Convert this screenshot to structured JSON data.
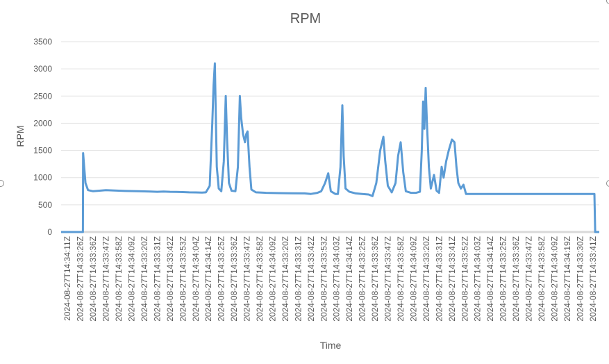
{
  "chart_data": {
    "type": "line",
    "title": "RPM",
    "xlabel": "Time",
    "ylabel": "RPM",
    "ylim": [
      0,
      3500
    ],
    "yticks": [
      0,
      500,
      1000,
      1500,
      2000,
      2500,
      3000,
      3500
    ],
    "grid": true,
    "legend": "none",
    "line_color": "#5b9bd5",
    "categories": [
      "2024-08-27T14:34:11Z",
      "2024-08-27T14:33:26Z",
      "2024-08-27T14:33:36Z",
      "2024-08-27T14:33:47Z",
      "2024-08-27T14:33:58Z",
      "2024-08-27T14:34:09Z",
      "2024-08-27T14:33:20Z",
      "2024-08-27T14:33:31Z",
      "2024-08-27T14:33:42Z",
      "2024-08-27T14:33:53Z",
      "2024-08-27T14:34:04Z",
      "2024-08-27T14:34:14Z",
      "2024-08-27T14:33:25Z",
      "2024-08-27T14:33:36Z",
      "2024-08-27T14:33:47Z",
      "2024-08-27T14:33:58Z",
      "2024-08-27T14:34:09Z",
      "2024-08-27T14:33:20Z",
      "2024-08-27T14:33:31Z",
      "2024-08-27T14:33:42Z",
      "2024-08-27T14:33:53Z",
      "2024-08-27T14:34:03Z",
      "2024-08-27T14:34:14Z",
      "2024-08-27T14:33:25Z",
      "2024-08-27T14:33:36Z",
      "2024-08-27T14:33:47Z",
      "2024-08-27T14:33:58Z",
      "2024-08-27T14:34:09Z",
      "2024-08-27T14:33:20Z",
      "2024-08-27T14:33:31Z",
      "2024-08-27T14:33:41Z",
      "2024-08-27T14:33:52Z",
      "2024-08-27T14:34:03Z",
      "2024-08-27T14:34:14Z",
      "2024-08-27T14:33:25Z",
      "2024-08-27T14:33:36Z",
      "2024-08-27T14:33:47Z",
      "2024-08-27T14:33:58Z",
      "2024-08-27T14:34:09Z",
      "2024-08-27T14:34:19Z",
      "2024-08-27T14:33:30Z",
      "2024-08-27T14:33:41Z"
    ],
    "series": [
      {
        "values": [
          [
            0,
            0
          ],
          [
            1.7,
            0
          ],
          [
            1.72,
            1450
          ],
          [
            1.8,
            1200
          ],
          [
            1.9,
            900
          ],
          [
            2.1,
            770
          ],
          [
            2.5,
            750
          ],
          [
            3,
            760
          ],
          [
            3.5,
            770
          ],
          [
            4,
            765
          ],
          [
            5,
            755
          ],
          [
            6,
            750
          ],
          [
            7,
            745
          ],
          [
            7.5,
            740
          ],
          [
            8,
            745
          ],
          [
            8.5,
            740
          ],
          [
            9,
            738
          ],
          [
            9.5,
            735
          ],
          [
            10,
            730
          ],
          [
            10.5,
            728
          ],
          [
            11,
            725
          ],
          [
            11.3,
            730
          ],
          [
            11.6,
            850
          ],
          [
            11.8,
            2000
          ],
          [
            11.9,
            2700
          ],
          [
            12.0,
            3100
          ],
          [
            12.05,
            2400
          ],
          [
            12.15,
            1200
          ],
          [
            12.3,
            800
          ],
          [
            12.5,
            750
          ],
          [
            12.7,
            1300
          ],
          [
            12.85,
            2500
          ],
          [
            12.95,
            1700
          ],
          [
            13.1,
            900
          ],
          [
            13.3,
            760
          ],
          [
            13.6,
            750
          ],
          [
            13.8,
            1200
          ],
          [
            13.95,
            2500
          ],
          [
            14.05,
            2100
          ],
          [
            14.2,
            1800
          ],
          [
            14.35,
            1650
          ],
          [
            14.45,
            1800
          ],
          [
            14.55,
            1850
          ],
          [
            14.7,
            1200
          ],
          [
            14.85,
            780
          ],
          [
            15.2,
            730
          ],
          [
            16,
            720
          ],
          [
            17,
            715
          ],
          [
            18,
            712
          ],
          [
            19,
            710
          ],
          [
            19.5,
            700
          ],
          [
            20,
            720
          ],
          [
            20.3,
            750
          ],
          [
            20.6,
            900
          ],
          [
            20.85,
            1080
          ],
          [
            21.05,
            750
          ],
          [
            21.4,
            700
          ],
          [
            21.6,
            700
          ],
          [
            21.8,
            1200
          ],
          [
            21.95,
            2330
          ],
          [
            22.05,
            1400
          ],
          [
            22.2,
            800
          ],
          [
            22.5,
            740
          ],
          [
            23,
            710
          ],
          [
            23.5,
            700
          ],
          [
            24,
            690
          ],
          [
            24.3,
            660
          ],
          [
            24.6,
            900
          ],
          [
            24.9,
            1500
          ],
          [
            25.15,
            1750
          ],
          [
            25.3,
            1300
          ],
          [
            25.5,
            850
          ],
          [
            25.8,
            730
          ],
          [
            26.1,
            900
          ],
          [
            26.3,
            1400
          ],
          [
            26.5,
            1650
          ],
          [
            26.7,
            1100
          ],
          [
            26.9,
            750
          ],
          [
            27.3,
            720
          ],
          [
            27.7,
            720
          ],
          [
            28,
            740
          ],
          [
            28.15,
            1500
          ],
          [
            28.25,
            2400
          ],
          [
            28.35,
            1900
          ],
          [
            28.45,
            2650
          ],
          [
            28.55,
            2000
          ],
          [
            28.7,
            1200
          ],
          [
            28.85,
            800
          ],
          [
            29.1,
            1050
          ],
          [
            29.3,
            760
          ],
          [
            29.5,
            720
          ],
          [
            29.7,
            1200
          ],
          [
            29.85,
            1000
          ],
          [
            30.05,
            1300
          ],
          [
            30.25,
            1500
          ],
          [
            30.5,
            1700
          ],
          [
            30.7,
            1650
          ],
          [
            30.85,
            1200
          ],
          [
            31,
            900
          ],
          [
            31.2,
            800
          ],
          [
            31.4,
            870
          ],
          [
            31.6,
            700
          ],
          [
            32,
            700
          ],
          [
            33,
            700
          ],
          [
            34,
            700
          ],
          [
            35,
            700
          ],
          [
            36,
            700
          ],
          [
            37,
            700
          ],
          [
            38,
            700
          ],
          [
            39,
            700
          ],
          [
            40,
            700
          ],
          [
            41,
            700
          ],
          [
            41.62,
            700
          ],
          [
            41.68,
            0
          ],
          [
            42,
            0
          ]
        ]
      }
    ]
  }
}
